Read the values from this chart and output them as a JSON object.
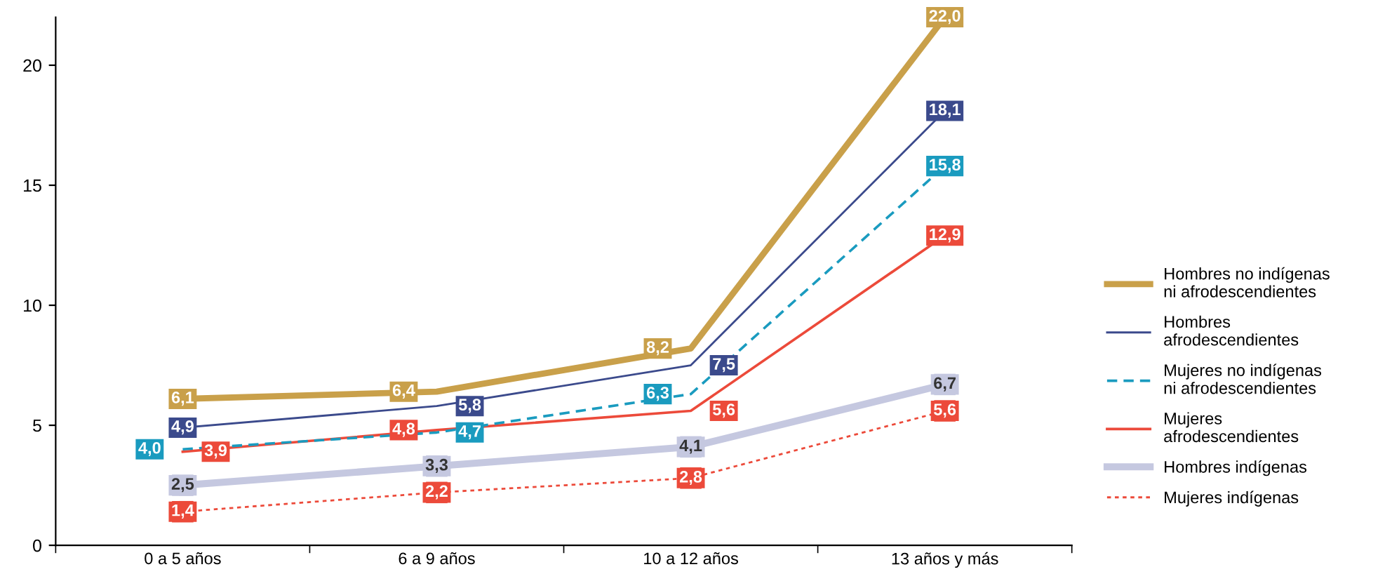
{
  "chart_data": {
    "type": "line",
    "categories": [
      "0 a 5 años",
      "6 a 9 años",
      "10 a 12 años",
      "13 años y más"
    ],
    "ylim": [
      0,
      22
    ],
    "yticks": [
      0,
      5,
      10,
      15,
      20
    ],
    "grid": false,
    "legend": "right",
    "series": [
      {
        "name": "Hombres no indígenas\nni afrodescendientes",
        "color": "#c9a04a",
        "line_style": "solid",
        "values": [
          6.1,
          6.4,
          8.2,
          22.0
        ],
        "value_labels": [
          "6,1",
          "6,4",
          "8,2",
          "22,0"
        ]
      },
      {
        "name": "Hombres\nafrodescendientes",
        "color": "#3b4a8c",
        "line_style": "solid",
        "values": [
          4.9,
          5.8,
          7.5,
          18.1
        ],
        "value_labels": [
          "4,9",
          "5,8",
          "7,5",
          "18,1"
        ]
      },
      {
        "name": "Mujeres no indígenas\nni afrodescendientes",
        "color": "#1a9bbf",
        "line_style": "dashed",
        "values": [
          4.0,
          4.7,
          6.3,
          15.8
        ],
        "value_labels": [
          "4,0",
          "4,7",
          "6,3",
          "15,8"
        ]
      },
      {
        "name": "Mujeres\nafrodescendientes",
        "color": "#ec4a3a",
        "line_style": "solid",
        "values": [
          3.9,
          4.8,
          5.6,
          12.9
        ],
        "value_labels": [
          "3,9",
          "4,8",
          "5,6",
          "12,9"
        ]
      },
      {
        "name": "Hombres indígenas",
        "color": "#c5c8e0",
        "line_style": "solid",
        "marker": "square",
        "values": [
          2.5,
          3.3,
          4.1,
          6.7
        ],
        "value_labels": [
          "2,5",
          "3,3",
          "4,1",
          "6,7"
        ]
      },
      {
        "name": "Mujeres indígenas",
        "color": "#ec4a3a",
        "line_style": "dotted",
        "marker": "square",
        "values": [
          1.4,
          2.2,
          2.8,
          5.6
        ],
        "value_labels": [
          "1,4",
          "2,2",
          "2,8",
          "5,6"
        ]
      }
    ]
  }
}
